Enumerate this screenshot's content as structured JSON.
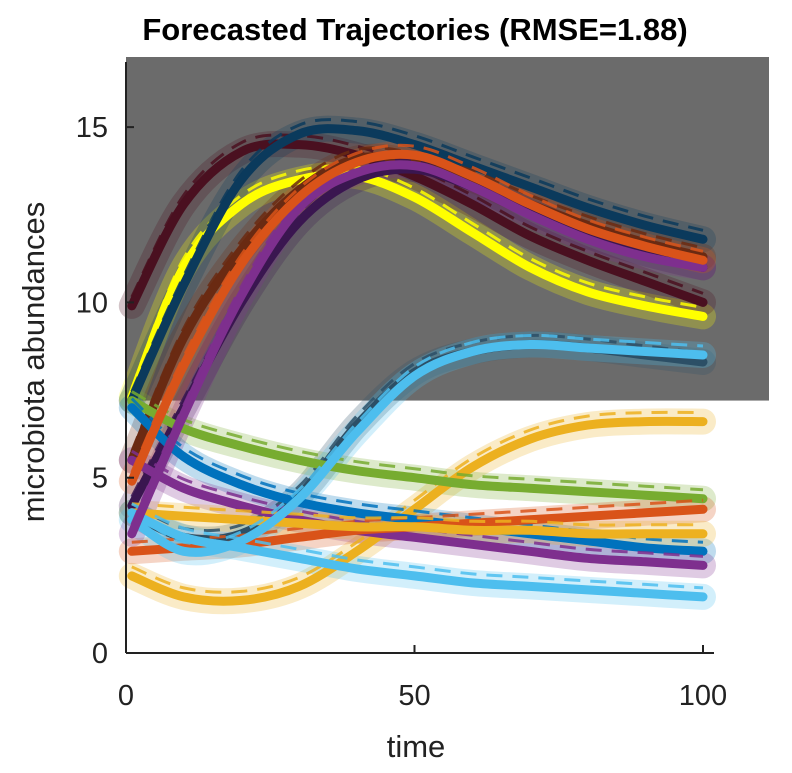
{
  "chart_data": {
    "type": "line",
    "title": "Forecasted Trajectories (RMSE=1.88)",
    "xlabel": "time",
    "ylabel": "microbiota abundances",
    "xlim": [
      0,
      102
    ],
    "ylim": [
      0,
      17
    ],
    "xticks": [
      "0",
      "50",
      "100"
    ],
    "yticks": [
      "0",
      "5",
      "10",
      "15"
    ],
    "shaded_region": {
      "y_from": 7.2,
      "y_to": 17,
      "color": "#6b6b6b"
    },
    "x": [
      1,
      10,
      20,
      30,
      40,
      50,
      60,
      70,
      80,
      90,
      100
    ],
    "series": [
      {
        "color": "#ffff00",
        "values": [
          7.3,
          11.0,
          12.8,
          13.5,
          13.6,
          13.0,
          12.0,
          11.0,
          10.3,
          9.9,
          9.6
        ]
      },
      {
        "color": "#4a1020",
        "values": [
          9.9,
          12.8,
          14.3,
          14.5,
          14.2,
          13.6,
          12.8,
          11.9,
          11.2,
          10.6,
          10.0
        ]
      },
      {
        "color": "#0b3a5c",
        "values": [
          7.2,
          10.5,
          13.5,
          14.8,
          14.9,
          14.5,
          13.9,
          13.3,
          12.7,
          12.2,
          11.8
        ]
      },
      {
        "color": "#6a2a12",
        "values": [
          5.5,
          9.0,
          11.5,
          13.2,
          14.1,
          14.0,
          13.5,
          12.8,
          12.2,
          11.7,
          11.3
        ]
      },
      {
        "color": "#3a1650",
        "values": [
          4.2,
          7.0,
          10.0,
          12.3,
          13.5,
          13.8,
          13.3,
          12.6,
          11.9,
          11.4,
          11.0
        ]
      },
      {
        "color": "#2c4f66",
        "values": [
          4.0,
          3.3,
          3.4,
          4.5,
          6.5,
          8.0,
          8.6,
          8.8,
          8.7,
          8.5,
          8.3
        ]
      },
      {
        "color": "#ecb01f",
        "values": [
          2.2,
          1.6,
          1.5,
          1.9,
          2.9,
          4.1,
          5.3,
          6.1,
          6.5,
          6.6,
          6.6
        ]
      },
      {
        "color": "#77ac30",
        "values": [
          7.2,
          6.4,
          5.9,
          5.5,
          5.2,
          5.0,
          4.8,
          4.7,
          4.6,
          4.5,
          4.4
        ]
      },
      {
        "color": "#0072bd",
        "values": [
          7.0,
          5.6,
          4.8,
          4.3,
          4.0,
          3.8,
          3.6,
          3.4,
          3.2,
          3.0,
          2.9
        ]
      },
      {
        "color": "#7e2f8e",
        "values": [
          5.5,
          4.7,
          4.2,
          3.8,
          3.5,
          3.3,
          3.1,
          2.9,
          2.7,
          2.6,
          2.5
        ]
      },
      {
        "color": "#d95319",
        "values": [
          2.9,
          3.0,
          3.1,
          3.3,
          3.5,
          3.6,
          3.7,
          3.8,
          3.9,
          4.0,
          4.1
        ]
      },
      {
        "color": "#edb120",
        "values": [
          4.0,
          3.9,
          3.8,
          3.7,
          3.6,
          3.6,
          3.5,
          3.5,
          3.4,
          3.4,
          3.4
        ]
      },
      {
        "color": "#4dbeee",
        "values": [
          3.8,
          2.9,
          3.2,
          4.4,
          6.3,
          7.9,
          8.6,
          8.8,
          8.7,
          8.6,
          8.5
        ]
      },
      {
        "color": "#4dbeee",
        "values": [
          4.0,
          3.3,
          3.0,
          2.7,
          2.4,
          2.2,
          2.0,
          1.9,
          1.8,
          1.7,
          1.6
        ]
      },
      {
        "color": "#7e2f8e",
        "values": [
          3.4,
          6.8,
          10.2,
          12.7,
          13.7,
          13.9,
          13.3,
          12.5,
          11.8,
          11.3,
          11.0
        ]
      },
      {
        "color": "#d95319",
        "values": [
          4.9,
          8.2,
          11.1,
          13.0,
          14.0,
          14.2,
          13.6,
          12.8,
          12.1,
          11.6,
          11.2
        ]
      }
    ]
  }
}
